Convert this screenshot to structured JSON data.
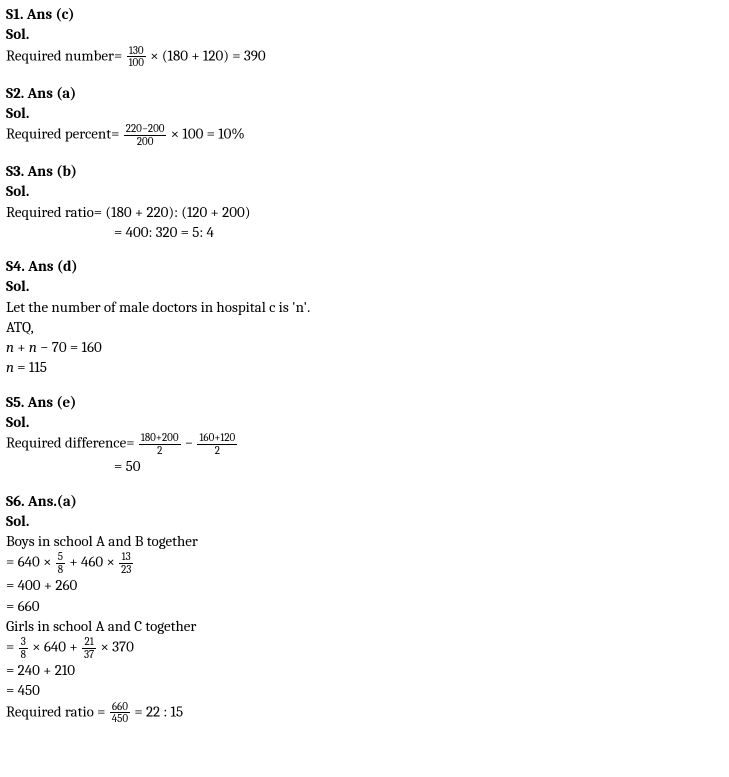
{
  "s1": {
    "header": "S1. Ans (c)",
    "sol": "Sol.",
    "line1_prefix": " Required number= ",
    "frac_num": "130",
    "frac_den": "100",
    "line1_suffix": " × (180 + 120) = 390"
  },
  "s2": {
    "header": "S2. Ans (a)",
    "sol": "Sol.",
    "line1_prefix": "Required percent= ",
    "frac_num": "220−200",
    "frac_den": "200",
    "line1_suffix": " × 100 = 10%"
  },
  "s3": {
    "header": "S3. Ans (b)",
    "sol": "Sol.",
    "line1": "Required ratio= (180 + 220): (120 + 200)",
    "line2": "= 400: 320 = 5: 4"
  },
  "s4": {
    "header": "S4. Ans (d)",
    "sol": "Sol.",
    "line1": "Let the number of male doctors in hospital c is 'n'.",
    "line2": "ATQ,",
    "line3_a": " ",
    "line3_b": "n",
    "line3_c": " + ",
    "line3_d": "n",
    "line3_e": " − 70 = 160",
    "line4_a": " ",
    "line4_b": "n",
    "line4_c": " = 115"
  },
  "s5": {
    "header": "S5. Ans (e)",
    "sol": "Sol.",
    "line1_prefix": "Required difference= ",
    "frac1_num": "180+200",
    "frac1_den": "2",
    "mid": " − ",
    "frac2_num": "160+120",
    "frac2_den": "2",
    "line2": "= 50"
  },
  "s6": {
    "header": "S6. Ans.(a)",
    "sol": "Sol.",
    "line1": "Boys in school A and B together",
    "line2_prefix": "= 640 × ",
    "frac1_num": "5",
    "frac1_den": "8",
    "line2_mid": " + 460 × ",
    "frac2_num": "13",
    "frac2_den": "23",
    "line3": "= 400 + 260",
    "line4": "= 660",
    "line5": "Girls in school A and C together",
    "line6_prefix": "= ",
    "frac3_num": "3",
    "frac3_den": "8",
    "line6_mid": " × 640 + ",
    "frac4_num": "21",
    "frac4_den": "37",
    "line6_suffix": " × 370",
    "line7": "= 240 + 210",
    "line8": "= 450",
    "line9_prefix": "Required ratio = ",
    "frac5_num": "660",
    "frac5_den": "450",
    "line9_suffix": " = 22 : 15"
  }
}
